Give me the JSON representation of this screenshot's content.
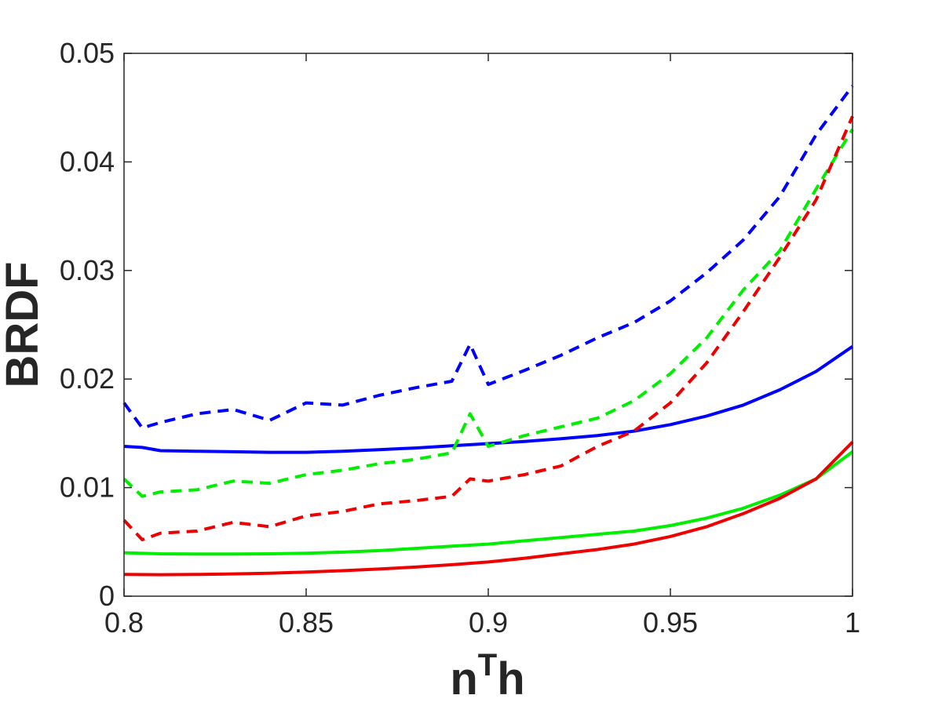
{
  "chart_data": {
    "type": "line",
    "xlabel": {
      "base": "n",
      "superscript": "T",
      "suffix": "h"
    },
    "ylabel": "BRDF",
    "xlim": [
      0.8,
      1.0
    ],
    "ylim": [
      0,
      0.05
    ],
    "x_ticks": [
      "0.8",
      "0.85",
      "0.9",
      "0.95",
      "1"
    ],
    "y_ticks": [
      "0",
      "0.01",
      "0.02",
      "0.03",
      "0.04",
      "0.05"
    ],
    "grid": false,
    "box": true,
    "series": [
      {
        "color": "#0000ff",
        "style": "solid",
        "x": [
          0.8,
          0.805,
          0.81,
          0.82,
          0.83,
          0.84,
          0.85,
          0.86,
          0.87,
          0.88,
          0.89,
          0.9,
          0.91,
          0.92,
          0.93,
          0.94,
          0.95,
          0.96,
          0.97,
          0.98,
          0.99,
          1.0
        ],
        "y": [
          0.0138,
          0.0137,
          0.0134,
          0.01335,
          0.0133,
          0.01325,
          0.01325,
          0.01335,
          0.0135,
          0.01365,
          0.01385,
          0.01405,
          0.01425,
          0.0145,
          0.0148,
          0.0152,
          0.0158,
          0.0166,
          0.0176,
          0.019,
          0.0207,
          0.023
        ]
      },
      {
        "color": "#00ee00",
        "style": "solid",
        "x": [
          0.8,
          0.81,
          0.82,
          0.83,
          0.84,
          0.85,
          0.86,
          0.87,
          0.88,
          0.89,
          0.9,
          0.91,
          0.92,
          0.93,
          0.94,
          0.95,
          0.96,
          0.97,
          0.98,
          0.99,
          1.0
        ],
        "y": [
          0.004,
          0.0039,
          0.00388,
          0.00388,
          0.0039,
          0.00395,
          0.00405,
          0.0042,
          0.0044,
          0.0046,
          0.0048,
          0.0051,
          0.0054,
          0.0057,
          0.006,
          0.0065,
          0.0072,
          0.0081,
          0.0093,
          0.0108,
          0.0133
        ]
      },
      {
        "color": "#ee0000",
        "style": "solid",
        "x": [
          0.8,
          0.81,
          0.82,
          0.83,
          0.84,
          0.85,
          0.86,
          0.87,
          0.88,
          0.89,
          0.9,
          0.91,
          0.92,
          0.93,
          0.94,
          0.95,
          0.96,
          0.97,
          0.98,
          0.99,
          1.0
        ],
        "y": [
          0.002,
          0.00198,
          0.002,
          0.00205,
          0.00212,
          0.00222,
          0.00235,
          0.0025,
          0.00268,
          0.0029,
          0.00315,
          0.0035,
          0.0039,
          0.0043,
          0.0048,
          0.0055,
          0.0064,
          0.0076,
          0.009,
          0.0108,
          0.0142
        ]
      },
      {
        "color": "#0000ff",
        "style": "dashed",
        "x": [
          0.8,
          0.805,
          0.81,
          0.82,
          0.83,
          0.84,
          0.85,
          0.86,
          0.87,
          0.88,
          0.89,
          0.895,
          0.9,
          0.91,
          0.92,
          0.93,
          0.94,
          0.95,
          0.96,
          0.97,
          0.98,
          0.99,
          1.0
        ],
        "y": [
          0.0178,
          0.0155,
          0.016,
          0.0168,
          0.0172,
          0.0162,
          0.0178,
          0.0176,
          0.0185,
          0.0192,
          0.0198,
          0.0232,
          0.0195,
          0.0208,
          0.0222,
          0.0238,
          0.0252,
          0.0272,
          0.0298,
          0.0328,
          0.0368,
          0.0425,
          0.047
        ]
      },
      {
        "color": "#00ee00",
        "style": "dashed",
        "x": [
          0.8,
          0.805,
          0.81,
          0.82,
          0.83,
          0.84,
          0.85,
          0.86,
          0.87,
          0.88,
          0.89,
          0.895,
          0.9,
          0.91,
          0.92,
          0.93,
          0.94,
          0.95,
          0.96,
          0.97,
          0.98,
          0.99,
          1.0
        ],
        "y": [
          0.0108,
          0.0092,
          0.0096,
          0.0098,
          0.0106,
          0.0104,
          0.0112,
          0.0116,
          0.0122,
          0.0126,
          0.0132,
          0.0168,
          0.0138,
          0.0148,
          0.0156,
          0.0164,
          0.018,
          0.0205,
          0.0238,
          0.0282,
          0.0318,
          0.0375,
          0.043
        ]
      },
      {
        "color": "#ee0000",
        "style": "dashed",
        "x": [
          0.8,
          0.805,
          0.81,
          0.82,
          0.83,
          0.84,
          0.85,
          0.86,
          0.87,
          0.88,
          0.89,
          0.895,
          0.9,
          0.91,
          0.92,
          0.93,
          0.94,
          0.95,
          0.96,
          0.97,
          0.98,
          0.99,
          1.0
        ],
        "y": [
          0.007,
          0.0052,
          0.0058,
          0.006,
          0.0068,
          0.0064,
          0.0074,
          0.0078,
          0.0085,
          0.0088,
          0.0092,
          0.0108,
          0.0106,
          0.0112,
          0.012,
          0.0138,
          0.0152,
          0.0178,
          0.0215,
          0.0262,
          0.0312,
          0.0365,
          0.0442
        ]
      }
    ]
  }
}
